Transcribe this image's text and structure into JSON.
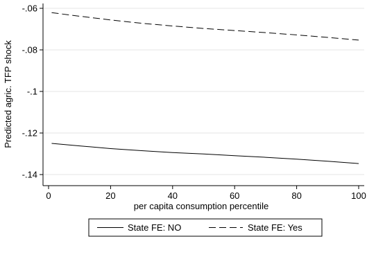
{
  "chart_data": {
    "type": "line",
    "title": "",
    "xlabel": "per capita consumption percentile",
    "ylabel": "Predicted agric. TFP shock",
    "xlim": [
      0,
      100
    ],
    "ylim": [
      -0.14,
      -0.06
    ],
    "xticks": [
      0,
      20,
      40,
      60,
      80,
      100
    ],
    "xtick_labels": [
      "0",
      "20",
      "40",
      "60",
      "80",
      "100"
    ],
    "yticks": [
      -0.14,
      -0.12,
      -0.1,
      -0.08,
      -0.06
    ],
    "ytick_labels": [
      "-.14",
      "-.12",
      "-.1",
      "-.08",
      "-.06"
    ],
    "grid": true,
    "legend_position": "bottom",
    "series": [
      {
        "name": "State FE: NO",
        "style": "solid",
        "x": [
          1,
          10,
          20,
          30,
          40,
          50,
          60,
          70,
          80,
          90,
          100
        ],
        "y": [
          -0.125,
          -0.1262,
          -0.1275,
          -0.1285,
          -0.1294,
          -0.1301,
          -0.1309,
          -0.1317,
          -0.1326,
          -0.1336,
          -0.1347
        ]
      },
      {
        "name": "State FE: Yes",
        "style": "dashed",
        "x": [
          1,
          10,
          20,
          30,
          40,
          50,
          60,
          70,
          80,
          90,
          100
        ],
        "y": [
          -0.0621,
          -0.0638,
          -0.0656,
          -0.0672,
          -0.0685,
          -0.0697,
          -0.0707,
          -0.0717,
          -0.0728,
          -0.074,
          -0.0753
        ]
      }
    ],
    "colors": {
      "line": "#000000",
      "grid": "#e6e6e6",
      "background": "#ffffff"
    }
  }
}
